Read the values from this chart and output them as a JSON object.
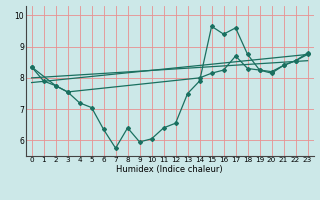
{
  "xlabel": "Humidex (Indice chaleur)",
  "bg_color": "#cce8e8",
  "grid_color": "#e89090",
  "line_color": "#1a7060",
  "xlim": [
    -0.5,
    23.5
  ],
  "ylim": [
    5.5,
    10.3
  ],
  "xticks": [
    0,
    1,
    2,
    3,
    4,
    5,
    6,
    7,
    8,
    9,
    10,
    11,
    12,
    13,
    14,
    15,
    16,
    17,
    18,
    19,
    20,
    21,
    22,
    23
  ],
  "yticks": [
    6,
    7,
    8,
    9,
    10
  ],
  "series1_x": [
    0,
    1,
    2,
    3,
    4,
    5,
    6,
    7,
    8,
    9,
    10,
    11,
    12,
    13,
    14,
    15,
    16,
    17,
    18,
    19,
    20,
    21,
    22,
    23
  ],
  "series1_y": [
    8.35,
    7.9,
    7.75,
    7.55,
    7.2,
    7.05,
    6.35,
    5.75,
    6.4,
    5.95,
    6.05,
    6.4,
    6.55,
    7.5,
    7.9,
    9.65,
    9.4,
    9.6,
    8.75,
    8.25,
    8.15,
    8.4,
    8.55,
    8.8
  ],
  "series2_x": [
    0,
    2,
    3,
    14,
    15,
    16,
    17,
    18,
    19,
    20,
    21,
    22,
    23
  ],
  "series2_y": [
    8.35,
    7.75,
    7.55,
    8.0,
    8.15,
    8.25,
    8.7,
    8.3,
    8.25,
    8.2,
    8.4,
    8.55,
    8.75
  ],
  "series3_x": [
    0,
    23
  ],
  "series3_y": [
    8.0,
    8.55
  ],
  "series4_x": [
    0,
    23
  ],
  "series4_y": [
    7.85,
    8.75
  ],
  "tick_fontsize": 5.2,
  "xlabel_fontsize": 6.0
}
